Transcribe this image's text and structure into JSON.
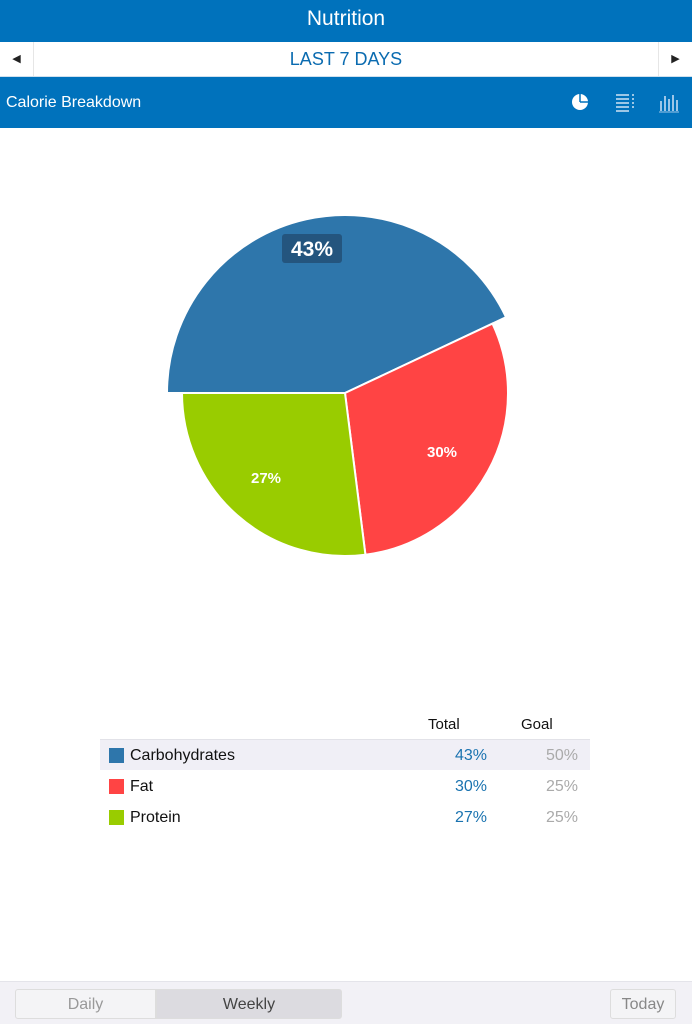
{
  "app": {
    "title": "Nutrition"
  },
  "date_nav": {
    "label": "LAST 7 DAYS",
    "prev": "◀",
    "next": "▶"
  },
  "section": {
    "title": "Calorie Breakdown",
    "icons": [
      "pie-chart-icon",
      "list-icon",
      "bar-chart-icon"
    ]
  },
  "chart_data": {
    "type": "pie",
    "categories": [
      "Carbohydrates",
      "Fat",
      "Protein"
    ],
    "values": [
      43,
      30,
      27
    ],
    "labels": [
      "43%",
      "30%",
      "27%"
    ],
    "colors": [
      "#2e76ab",
      "#ff4444",
      "#99cc00"
    ],
    "selected": "Carbohydrates"
  },
  "table": {
    "headers": {
      "total": "Total",
      "goal": "Goal"
    },
    "rows": [
      {
        "name": "Carbohydrates",
        "total": "43%",
        "goal": "50%",
        "color": "#2e76ab"
      },
      {
        "name": "Fat",
        "total": "30%",
        "goal": "25%",
        "color": "#ff4444"
      },
      {
        "name": "Protein",
        "total": "27%",
        "goal": "25%",
        "color": "#99cc00"
      }
    ]
  },
  "footer": {
    "daily": "Daily",
    "weekly": "Weekly",
    "today": "Today",
    "active": "Weekly"
  }
}
